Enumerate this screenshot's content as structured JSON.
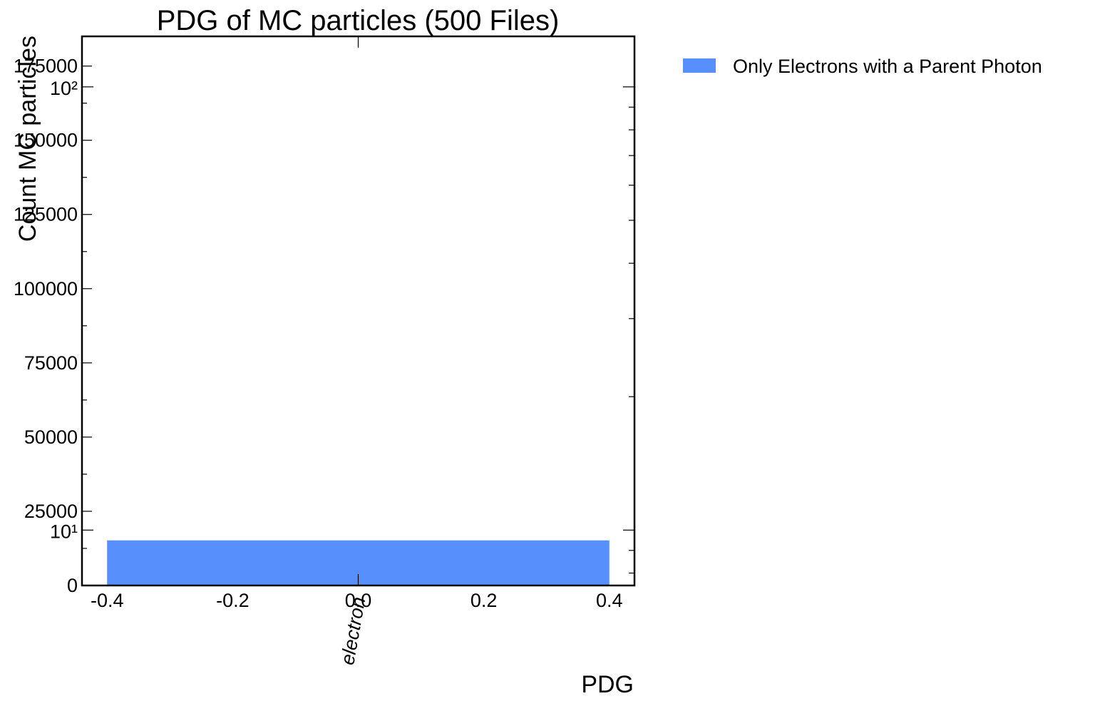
{
  "chart_data": {
    "type": "bar",
    "title": "PDG of MC particles (500 Files)",
    "xlabel": "PDG",
    "ylabel": "Count MC particles",
    "categories": [
      "electron"
    ],
    "series": [
      {
        "name": "Only Electrons with a Parent Photon",
        "color": "#5790fc",
        "values": [
          15200
        ]
      }
    ],
    "bar_extent": [
      -0.4,
      0.4
    ],
    "xlim": [
      -0.44,
      0.44
    ],
    "ylim": [
      0,
      185000
    ],
    "x_ticks": [
      -0.4,
      -0.2,
      0.0,
      0.2,
      0.4
    ],
    "x_tick_labels": [
      "-0.4",
      "-0.2",
      "0.0",
      "0.2",
      "0.4"
    ],
    "y_ticks": [
      0,
      25000,
      50000,
      75000,
      100000,
      125000,
      150000,
      175000
    ],
    "y_tick_labels": [
      "0",
      "25000",
      "50000",
      "75000",
      "100000",
      "125000",
      "150000",
      "175000"
    ],
    "overlay_log_y_ticks": [
      {
        "value": 10,
        "label": "10¹"
      },
      {
        "value": 100,
        "label": "10²"
      }
    ],
    "overlay_log_y_range": [
      7.5,
      130
    ],
    "grid": false,
    "legend_position": "outside-right-top"
  }
}
